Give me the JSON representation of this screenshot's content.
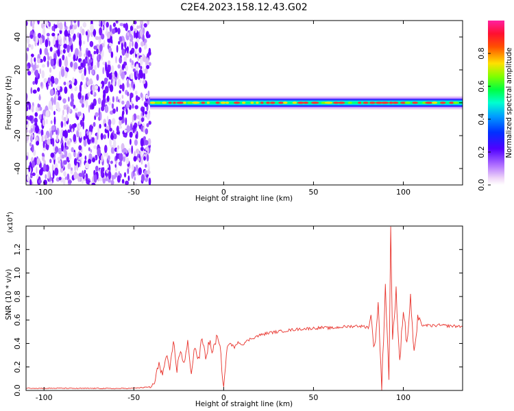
{
  "chart_data": [
    {
      "type": "heatmap",
      "title": "C2E4.2023.158.12.43.G02",
      "xlabel": "Height of straight line (km)",
      "ylabel": "Frequency (Hz)",
      "xlim": [
        -110,
        133
      ],
      "ylim": [
        -50,
        50
      ],
      "xticks": [
        -100,
        -50,
        0,
        50,
        100
      ],
      "yticks": [
        -40,
        -20,
        0,
        20,
        40
      ],
      "colorbar": {
        "label": "Normalized spectral amplitude",
        "range": [
          0.0,
          1.0
        ],
        "ticks": [
          0.0,
          0.2,
          0.4,
          0.6,
          0.8
        ],
        "tick_labels": [
          "0.0",
          "0.2",
          "0.4",
          "0.6",
          "0.8"
        ]
      },
      "features": {
        "noise_region_km": [
          -110,
          -41
        ],
        "signal_line_frequency_hz": 0,
        "signal_start_km": -41
      },
      "colors": [
        "#ffffff",
        "#e8d0f5",
        "#a060ff",
        "#6000ff",
        "#0040ff",
        "#00d0ff",
        "#00ff80",
        "#80ff00",
        "#ffe000",
        "#ff3030"
      ]
    },
    {
      "type": "line",
      "xlabel": "Height of straight line (km)",
      "ylabel": "SNR (10 * v/v)",
      "scale_label": "(x10",
      "scale_exponent": "4",
      "xlim": [
        -110,
        133
      ],
      "ylim": [
        0,
        14000
      ],
      "xticks": [
        -100,
        -50,
        0,
        50,
        100
      ],
      "yticks": [
        0,
        2000,
        4000,
        6000,
        8000,
        10000,
        12000
      ],
      "ytick_labels": [
        "0.0",
        "0.2",
        "0.4",
        "0.6",
        "0.8",
        "1.0",
        "1.2"
      ],
      "series": [
        {
          "color": "#e8312a",
          "x": [
            -110,
            -100,
            -90,
            -80,
            -70,
            -60,
            -50,
            -45,
            -40,
            -38,
            -36,
            -34,
            -32,
            -30,
            -28,
            -26,
            -24,
            -22,
            -20,
            -18,
            -16,
            -14,
            -12,
            -10,
            -8,
            -6,
            -4,
            -2,
            0,
            2,
            4,
            6,
            8,
            10,
            15,
            20,
            25,
            30,
            35,
            40,
            45,
            50,
            55,
            60,
            65,
            70,
            75,
            80,
            82,
            84,
            86,
            88,
            90,
            92,
            93,
            94,
            96,
            98,
            100,
            102,
            104,
            106,
            108,
            110,
            115,
            120,
            125,
            133
          ],
          "y": [
            200,
            180,
            190,
            170,
            180,
            160,
            190,
            250,
            300,
            800,
            2500,
            1200,
            3000,
            1500,
            4200,
            1800,
            3500,
            2200,
            4000,
            1600,
            3800,
            2500,
            4500,
            2800,
            4200,
            3200,
            4600,
            3600,
            300,
            3800,
            4000,
            3600,
            4200,
            3900,
            4400,
            4700,
            4900,
            5000,
            5100,
            5200,
            5250,
            5300,
            5350,
            5300,
            5400,
            5450,
            5500,
            5400,
            6200,
            3500,
            7500,
            200,
            9000,
            1000,
            13800,
            4000,
            8500,
            2500,
            7000,
            3800,
            8000,
            3000,
            6000,
            5600,
            5500,
            5550,
            5500,
            5450
          ]
        }
      ]
    }
  ]
}
